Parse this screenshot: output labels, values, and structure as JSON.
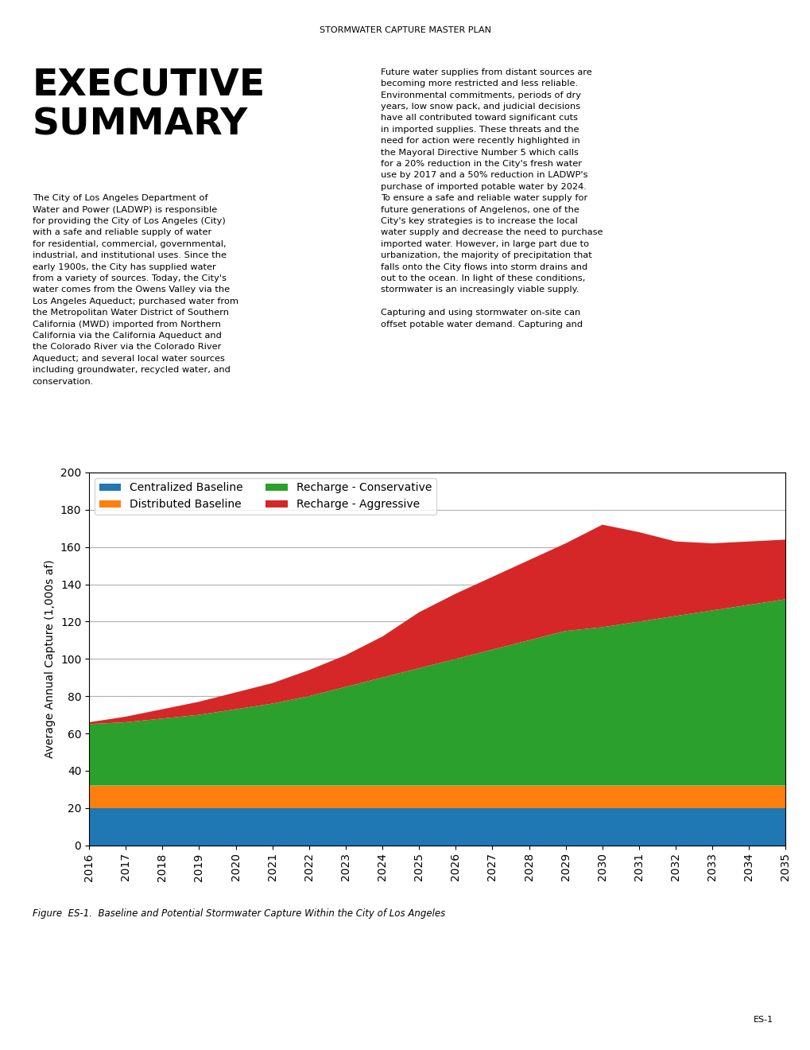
{
  "chart_data": {
    "type": "area",
    "stacked": true,
    "title": "EXECUTIVE\nSUMMARY",
    "ylabel": "Average Annual Capture (1,000s af)",
    "x": [
      2016,
      2017,
      2018,
      2019,
      2020,
      2021,
      2022,
      2023,
      2024,
      2025,
      2026,
      2027,
      2028,
      2029,
      2030,
      2031,
      2032,
      2033,
      2034,
      2035
    ],
    "series": [
      {
        "name": "Centralized Baseline",
        "values": [
          20,
          20,
          20,
          20,
          20,
          20,
          20,
          20,
          20,
          20,
          20,
          20,
          20,
          20,
          20,
          20,
          20,
          20,
          20,
          20
        ]
      },
      {
        "name": "Distributed Baseline",
        "values": [
          12,
          12,
          12,
          12,
          12,
          12,
          12,
          12,
          12,
          12,
          12,
          12,
          12,
          12,
          12,
          12,
          12,
          12,
          12,
          12
        ]
      },
      {
        "name": "Recharge - Conservative",
        "values": [
          33,
          34,
          36,
          38,
          41,
          44,
          48,
          53,
          58,
          63,
          68,
          73,
          78,
          83,
          85,
          88,
          91,
          94,
          97,
          100
        ]
      },
      {
        "name": "Recharge - Aggressive",
        "values": [
          1,
          3,
          5,
          7,
          9,
          11,
          14,
          17,
          22,
          30,
          35,
          39,
          43,
          47,
          55,
          48,
          40,
          36,
          34,
          32
        ]
      }
    ],
    "xlim": [
      2016,
      2035
    ],
    "xticks": [
      2016,
      2017,
      2018,
      2019,
      2020,
      2021,
      2022,
      2023,
      2024,
      2025,
      2026,
      2027,
      2028,
      2029,
      2030,
      2031,
      2032,
      2033,
      2034,
      2035
    ],
    "ylim": [
      0,
      200
    ],
    "yticks": [
      0,
      20,
      40,
      60,
      80,
      100,
      120,
      140,
      160,
      180,
      200
    ],
    "grid": true,
    "legend": "upper left",
    "annotations": [
      "STORMWATER CAPTURE MASTER PLAN",
      "The City of Los Angeles Department of\nWater and Power (LADWP) is responsible\nfor providing the City of Los Angeles (City)\nwith a safe and reliable supply of water\nfor residential, commercial, governmental,\nindustrial, and institutional uses. Since the\nearly 1900s, the City has supplied water\nfrom a variety of sources. Today, the City's\nwater comes from the Owens Valley via the\nLos Angeles Aqueduct; purchased water from\nthe Metropolitan Water District of Southern\nCalifornia (MWD) imported from Northern\nCalifornia via the California Aqueduct and\nthe Colorado River via the Colorado River\nAqueduct; and several local water sources\nincluding groundwater, recycled water, and\nconservation.",
      "Future water supplies from distant sources are\nbecoming more restricted and less reliable.\nEnvironmental commitments, periods of dry\nyears, low snow pack, and judicial decisions\nhave all contributed toward significant cuts\nin imported supplies. These threats and the\nneed for action were recently highlighted in\nthe Mayoral Directive Number 5 which calls\nfor a 20% reduction in the City's fresh water\nuse by 2017 and a 50% reduction in LADWP's\npurchase of imported potable water by 2024.\nTo ensure a safe and reliable water supply for\nfuture generations of Angelenos, one of the\nCity's key strategies is to increase the local\nwater supply and decrease the need to purchase\nimported water. However, in large part due to\nurbanization, the majority of precipitation that\nfalls onto the City flows into storm drains and\nout to the ocean. In light of these conditions,\nstormwater is an increasingly viable supply.\n\nCapturing and using stormwater on-site can\noffset potable water demand. Capturing and",
      "Figure  ES-1.  Baseline and Potential Stormwater Capture Within the City of Los Angeles",
      "ES-1"
    ]
  }
}
